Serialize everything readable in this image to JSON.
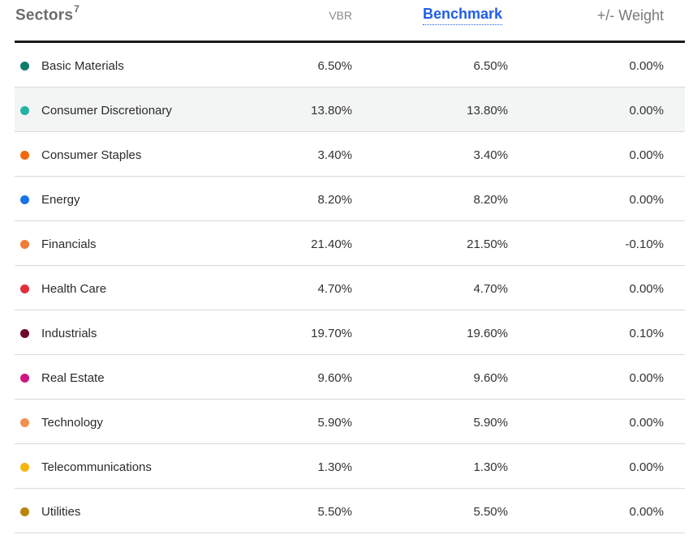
{
  "header": {
    "title": "Sectors",
    "footnote": "7",
    "col_fund": "VBR",
    "col_benchmark": "Benchmark",
    "col_diff": "+/- Weight"
  },
  "rows": [
    {
      "name": "Basic Materials",
      "fund": "6.50%",
      "benchmark": "6.50%",
      "diff": "0.00%",
      "color": "#0e7c6b"
    },
    {
      "name": "Consumer Discretionary",
      "fund": "13.80%",
      "benchmark": "13.80%",
      "diff": "0.00%",
      "color": "#24b3a3"
    },
    {
      "name": "Consumer Staples",
      "fund": "3.40%",
      "benchmark": "3.40%",
      "diff": "0.00%",
      "color": "#f06a0c"
    },
    {
      "name": "Energy",
      "fund": "8.20%",
      "benchmark": "8.20%",
      "diff": "0.00%",
      "color": "#1a73e8"
    },
    {
      "name": "Financials",
      "fund": "21.40%",
      "benchmark": "21.50%",
      "diff": "-0.10%",
      "color": "#f27b36"
    },
    {
      "name": "Health Care",
      "fund": "4.70%",
      "benchmark": "4.70%",
      "diff": "0.00%",
      "color": "#e0303a"
    },
    {
      "name": "Industrials",
      "fund": "19.70%",
      "benchmark": "19.60%",
      "diff": "0.10%",
      "color": "#6e0a2a"
    },
    {
      "name": "Real Estate",
      "fund": "9.60%",
      "benchmark": "9.60%",
      "diff": "0.00%",
      "color": "#d0157f"
    },
    {
      "name": "Technology",
      "fund": "5.90%",
      "benchmark": "5.90%",
      "diff": "0.00%",
      "color": "#f2904f"
    },
    {
      "name": "Telecommunications",
      "fund": "1.30%",
      "benchmark": "1.30%",
      "diff": "0.00%",
      "color": "#f7b40f"
    },
    {
      "name": "Utilities",
      "fund": "5.50%",
      "benchmark": "5.50%",
      "diff": "0.00%",
      "color": "#b8860b"
    }
  ]
}
